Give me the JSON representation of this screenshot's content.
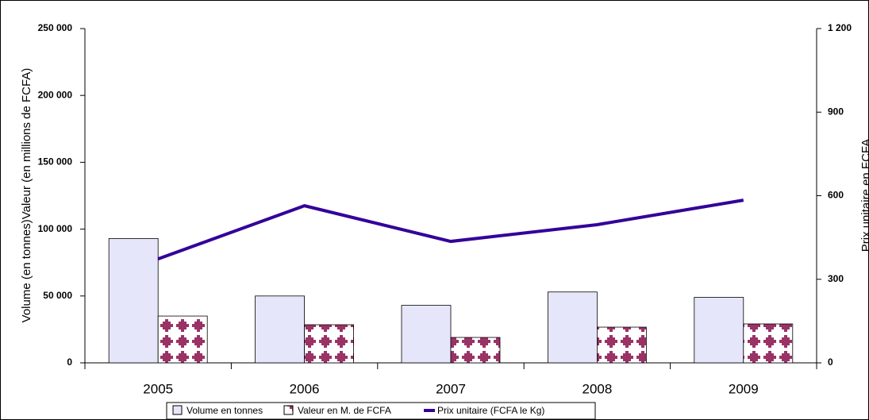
{
  "chart_data": {
    "type": "bar-line",
    "y_label": "Volume (en tonnes)Valeur (en millions de FCFA)",
    "y2_label": "Prix unitaire en FCFA",
    "categories": [
      "2005",
      "2006",
      "2007",
      "2008",
      "2009"
    ],
    "series": [
      {
        "name": "Volume en tonnes",
        "type": "bar",
        "color": "#e6e6fa",
        "values": [
          93000,
          50000,
          43000,
          53000,
          49000
        ]
      },
      {
        "name": "Valeur en M. de FCFA",
        "type": "bar",
        "color": "#993366",
        "values": [
          35000,
          28500,
          19000,
          26700,
          29100
        ]
      },
      {
        "name": "Prix unitaire (FCFA le Kg)",
        "type": "line",
        "axis": "y2",
        "color": "#330099",
        "values": [
          373,
          564,
          436,
          496,
          584
        ]
      }
    ],
    "ylim": [
      0,
      250000
    ],
    "yticks": [
      0,
      {
        "value": 50000,
        "label": "50 000"
      },
      {
        "value": 100000,
        "label": "100 000"
      },
      {
        "value": 150000,
        "label": "150 000"
      },
      {
        "value": 200000,
        "label": "200 000"
      },
      {
        "value": 250000,
        "label": "250 000"
      }
    ],
    "y2lim": [
      0,
      1200
    ],
    "y2ticks": [
      0,
      300,
      600,
      900,
      {
        "value": 1200,
        "label": "1 200"
      }
    ],
    "legend": "bottom"
  }
}
